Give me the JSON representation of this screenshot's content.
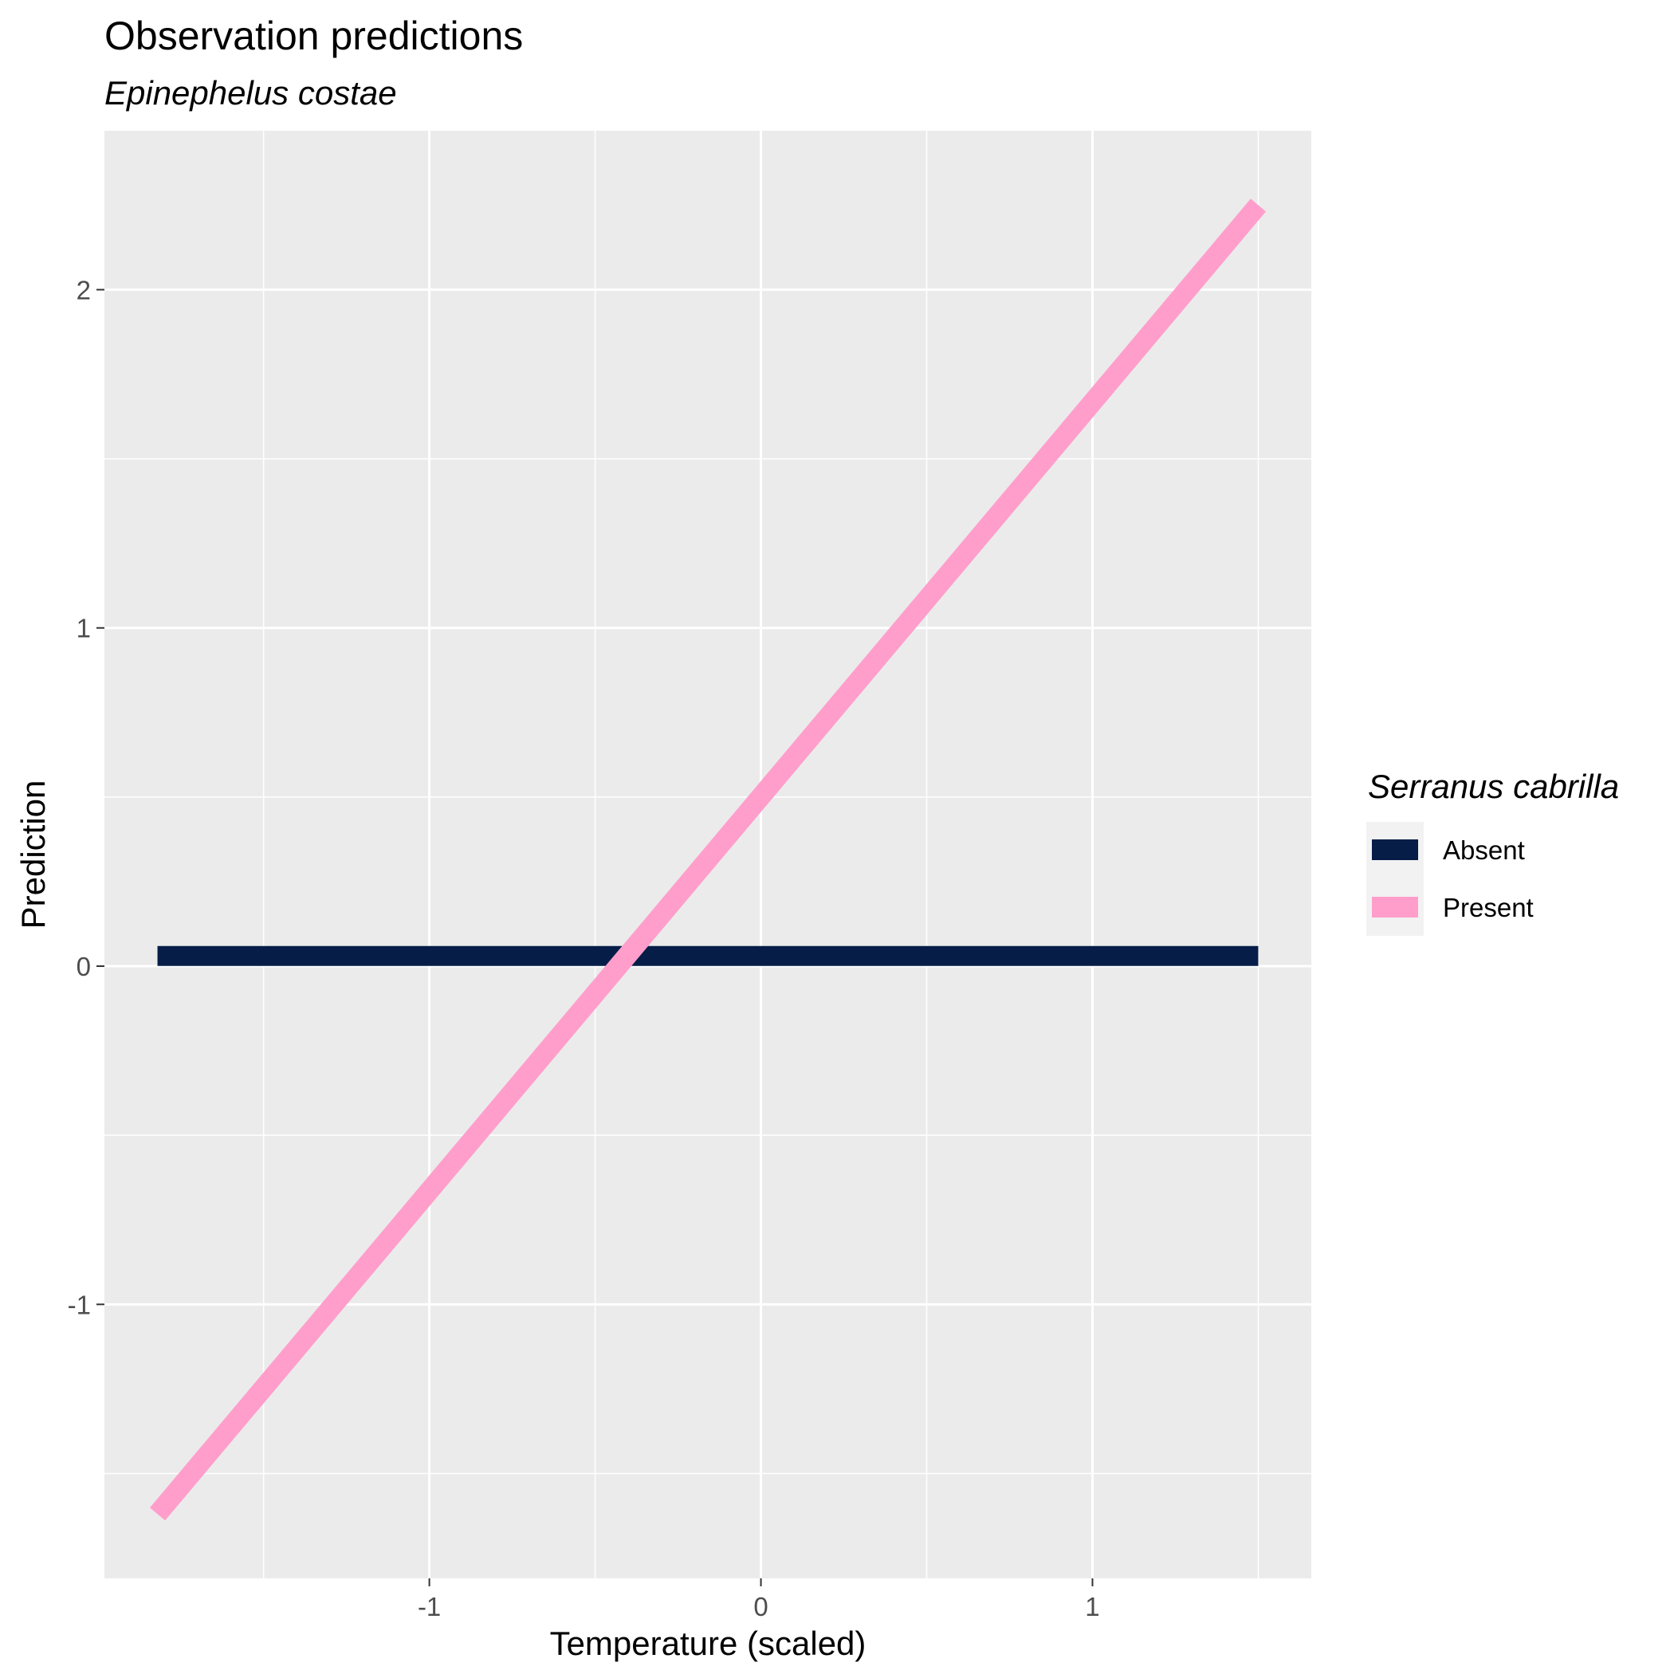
{
  "chart_data": {
    "type": "line",
    "title": "Observation predictions",
    "subtitle": "Epinephelus costae",
    "xlabel": "Temperature (scaled)",
    "ylabel": "Prediction",
    "xlim": [
      -1.98,
      1.66
    ],
    "ylim": [
      -1.81,
      2.47
    ],
    "x_ticks": [
      -1,
      0,
      1
    ],
    "x_tick_labels": [
      "-1",
      "0",
      "1"
    ],
    "y_ticks": [
      -1,
      0,
      1,
      2
    ],
    "y_tick_labels": [
      "-1",
      "0",
      "1",
      "2"
    ],
    "grid": true,
    "legend": {
      "title": "Serranus cabrilla",
      "position": "right"
    },
    "series": [
      {
        "name": "Absent",
        "color": "#061D48",
        "x": [
          -1.82,
          1.5
        ],
        "y": [
          0.03,
          0.03
        ]
      },
      {
        "name": "Present",
        "color": "#FF9ECB",
        "x": [
          -1.82,
          1.5
        ],
        "y": [
          -1.62,
          2.25
        ]
      }
    ]
  },
  "colors": {
    "panel_background": "#EBEBEB",
    "grid_line": "#FFFFFF",
    "tick_color": "#333333"
  }
}
